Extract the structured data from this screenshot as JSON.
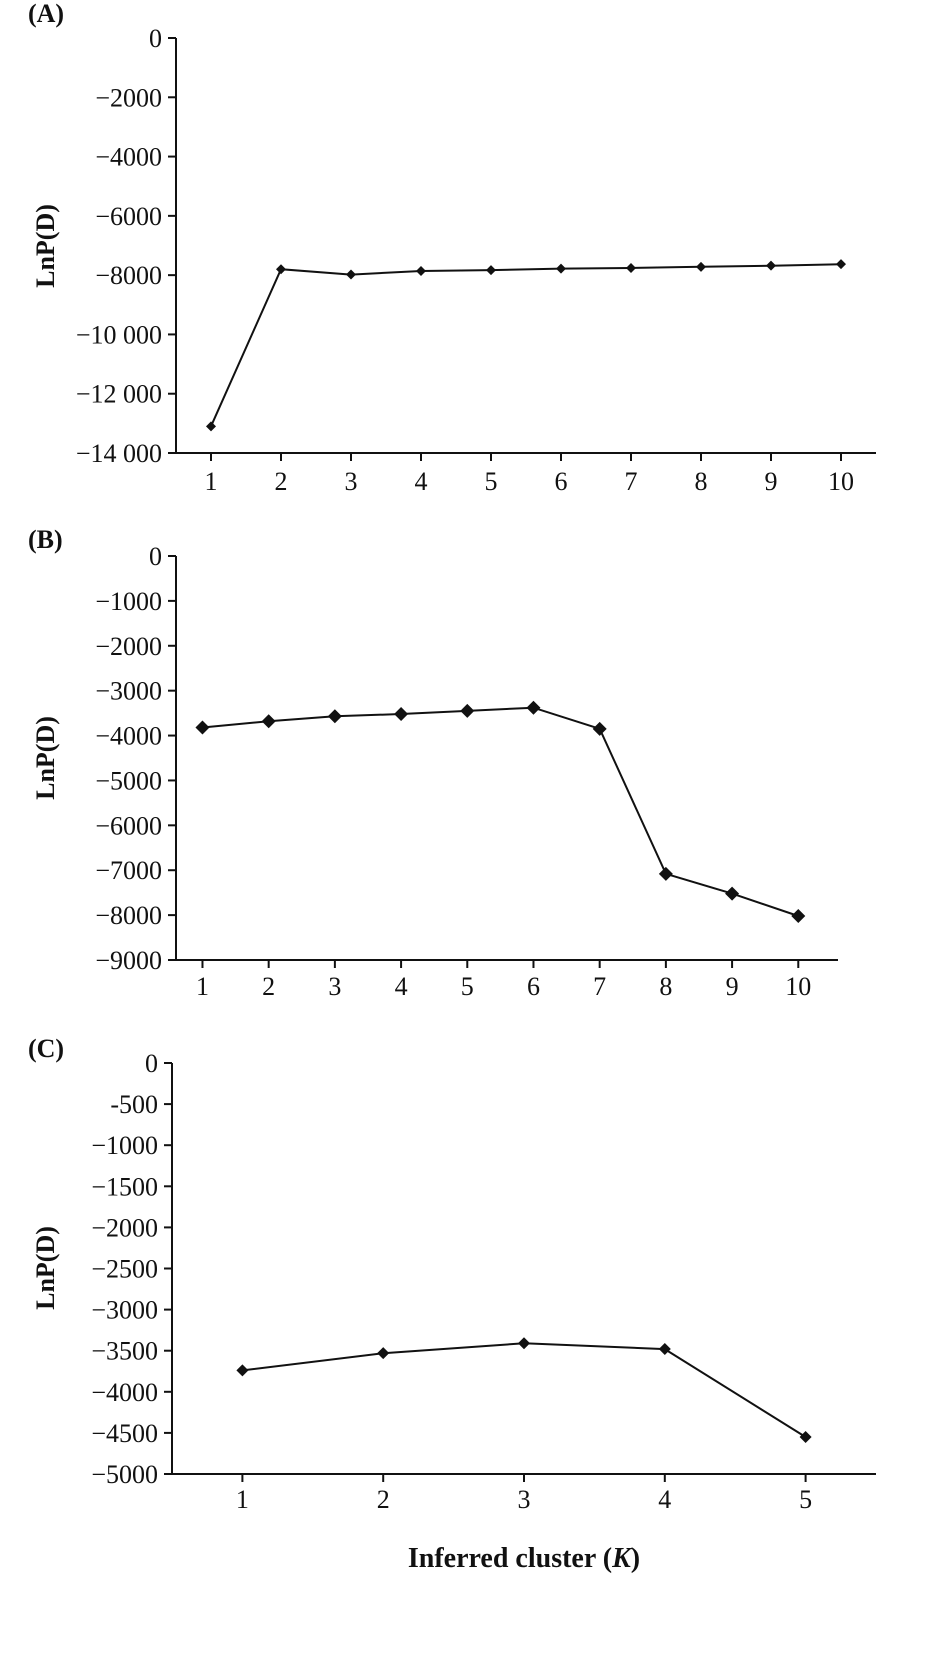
{
  "chart_data": [
    {
      "type": "line",
      "panel_label": "(A)",
      "ylabel": "LnP(D)",
      "xlabel": "",
      "x": [
        1,
        2,
        3,
        4,
        5,
        6,
        7,
        8,
        9,
        10
      ],
      "x_tick_labels": [
        "1",
        "2",
        "3",
        "4",
        "5",
        "6",
        "7",
        "8",
        "9",
        "10"
      ],
      "ylim": [
        -14000,
        0
      ],
      "y_ticks": [
        0,
        -2000,
        -4000,
        -6000,
        -8000,
        -10000,
        -12000,
        -14000
      ],
      "y_tick_labels": [
        "0",
        "−2000",
        "−4000",
        "−6000",
        "−8000",
        "−10 000",
        "−12 000",
        "−14 000"
      ],
      "series": [
        {
          "values": [
            -13100,
            -7800,
            -7980,
            -7860,
            -7830,
            -7780,
            -7760,
            -7720,
            -7680,
            -7630
          ]
        }
      ],
      "grid": false,
      "legend": "none"
    },
    {
      "type": "line",
      "panel_label": "(B)",
      "ylabel": "LnP(D)",
      "xlabel": "",
      "x": [
        1,
        2,
        3,
        4,
        5,
        6,
        7,
        8,
        9,
        10
      ],
      "x_tick_labels": [
        "1",
        "2",
        "3",
        "4",
        "5",
        "6",
        "7",
        "8",
        "9",
        "10"
      ],
      "ylim": [
        -9000,
        0
      ],
      "y_ticks": [
        0,
        -1000,
        -2000,
        -3000,
        -4000,
        -5000,
        -6000,
        -7000,
        -8000,
        -9000
      ],
      "y_tick_labels": [
        "0",
        "−1000",
        "−2000",
        "−3000",
        "−4000",
        "−5000",
        "−6000",
        "−7000",
        "−8000",
        "−9000"
      ],
      "series": [
        {
          "values": [
            -3820,
            -3680,
            -3570,
            -3520,
            -3450,
            -3380,
            -3850,
            -7080,
            -7520,
            -8020
          ]
        }
      ],
      "grid": false,
      "legend": "none"
    },
    {
      "type": "line",
      "panel_label": "(C)",
      "ylabel": "LnP(D)",
      "xlabel": "Inferred cluster (",
      "xlabel_italic": "K",
      "xlabel_end": ")",
      "x": [
        1,
        2,
        3,
        4,
        5
      ],
      "x_tick_labels": [
        "1",
        "2",
        "3",
        "4",
        "5"
      ],
      "ylim": [
        -5000,
        0
      ],
      "y_ticks": [
        0,
        -500,
        -1000,
        -1500,
        -2000,
        -2500,
        -3000,
        -3500,
        -4000,
        -4500,
        -5000
      ],
      "y_tick_labels": [
        "0",
        "-500",
        "−1000",
        "−1500",
        "−2000",
        "−2500",
        "−3000",
        "−3500",
        "−4000",
        "−4500",
        "−5000"
      ],
      "series": [
        {
          "values": [
            -3740,
            -3530,
            -3410,
            -3480,
            -4550
          ]
        }
      ],
      "grid": false,
      "legend": "none"
    }
  ]
}
